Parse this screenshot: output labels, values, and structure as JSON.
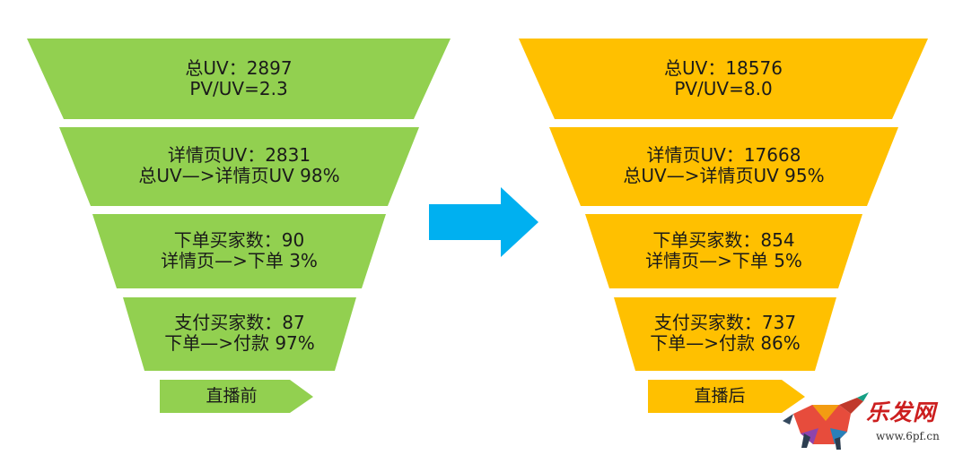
{
  "colors": {
    "before": "#92d050",
    "after": "#ffc000",
    "arrow": "#00b0f0",
    "watermark_red": "#cc1f1f"
  },
  "funnels": [
    {
      "stages": [
        {
          "line1": "总UV：2897",
          "line2": "PV/UV=2.3"
        },
        {
          "line1": "详情页UV：2831",
          "line2": "总UV—>详情页UV 98%"
        },
        {
          "line1": "下单买家数：90",
          "line2": "详情页—>下单 3%"
        },
        {
          "line1": "支付买家数：87",
          "line2": "下单—>付款 97%"
        }
      ],
      "tag": "直播前"
    },
    {
      "stages": [
        {
          "line1": "总UV：18576",
          "line2": "PV/UV=8.0"
        },
        {
          "line1": "详情页UV：17668",
          "line2": "总UV—>详情页UV 95%"
        },
        {
          "line1": "下单买家数：854",
          "line2": "详情页—>下单 5%"
        },
        {
          "line1": "支付买家数：737",
          "line2": "下单—>付款 86%"
        }
      ],
      "tag": "直播后"
    }
  ],
  "watermark": {
    "logo_text": "乐发网",
    "url": "www.6pf.cn",
    "icon": "bull-icon"
  }
}
